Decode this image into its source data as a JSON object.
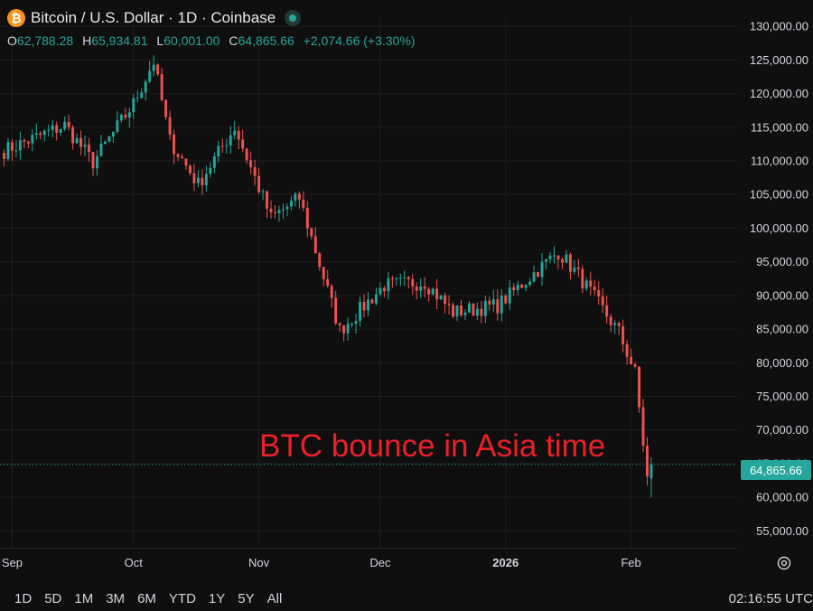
{
  "header": {
    "title": "Bitcoin / U.S. Dollar · 1D · Coinbase",
    "icon_letter": "₿",
    "ohlc": {
      "o_label": "O",
      "o": "62,788.28",
      "h_label": "H",
      "h": "65,934.81",
      "l_label": "L",
      "l": "60,001.00",
      "c_label": "C",
      "c": "64,865.66",
      "change": "+2,074.66 (+3.30%)"
    }
  },
  "annotation": "BTC bounce in Asia time",
  "last_price_label": "64,865.66",
  "ranges": [
    "1D",
    "5D",
    "1M",
    "3M",
    "6M",
    "YTD",
    "1Y",
    "5Y",
    "All"
  ],
  "clock": "02:16:55 UTC",
  "colors": {
    "up": "#26a69a",
    "down": "#ef5350",
    "background": "#0f0f0f",
    "grid": "#1f1f1f",
    "annotation": "#e8202a"
  },
  "chart_data": {
    "type": "candlestick",
    "y_ticks": [
      "55,000.00",
      "60,000.00",
      "65,000.00",
      "70,000.00",
      "75,000.00",
      "80,000.00",
      "85,000.00",
      "90,000.00",
      "95,000.00",
      "100,000.00",
      "105,000.00",
      "110,000.00",
      "115,000.00",
      "120,000.00",
      "125,000.00",
      "130,000.00"
    ],
    "y_tick_values": [
      55000,
      60000,
      65000,
      70000,
      75000,
      80000,
      85000,
      90000,
      95000,
      100000,
      105000,
      110000,
      115000,
      120000,
      125000,
      130000
    ],
    "ylim": [
      52500,
      131500
    ],
    "x_ticks": [
      {
        "label": "Sep",
        "x": "2025-09-01"
      },
      {
        "label": "Oct",
        "x": "2025-10-01"
      },
      {
        "label": "Nov",
        "x": "2025-11-01"
      },
      {
        "label": "Dec",
        "x": "2025-12-01"
      },
      {
        "label": "2026",
        "x": "2026-01-01"
      },
      {
        "label": "Feb",
        "x": "2026-02-01"
      }
    ],
    "xlim": [
      "2025-08-29",
      "2026-02-27"
    ],
    "last_price": 64865.66,
    "series": [
      {
        "x": "2025-09-14",
        "close": 115300
      },
      {
        "x": "2025-09-21",
        "close": 109800
      },
      {
        "x": "2025-10-01",
        "close": 118500
      },
      {
        "x": "2025-10-06",
        "close": 124800
      },
      {
        "x": "2025-10-10",
        "close": 113000
      },
      {
        "x": "2025-10-17",
        "close": 106500
      },
      {
        "x": "2025-10-26",
        "close": 115000
      },
      {
        "x": "2025-11-04",
        "close": 101500
      },
      {
        "x": "2025-11-11",
        "close": 104500
      },
      {
        "x": "2025-11-21",
        "close": 84800
      },
      {
        "x": "2025-12-02",
        "close": 91500
      },
      {
        "x": "2025-12-12",
        "close": 92000
      },
      {
        "x": "2025-12-19",
        "close": 87500
      },
      {
        "x": "2025-12-30",
        "close": 88500
      },
      {
        "x": "2026-01-14",
        "close": 96500
      },
      {
        "x": "2026-01-19",
        "close": 93000
      },
      {
        "x": "2026-01-29",
        "close": 84500
      },
      {
        "x": "2026-02-02",
        "close": 78500
      },
      {
        "x": "2026-02-05",
        "close": 62800
      },
      {
        "x": "2026-02-06",
        "open": 62788.28,
        "high": 65934.81,
        "low": 60001.0,
        "close": 64865.66
      }
    ]
  }
}
